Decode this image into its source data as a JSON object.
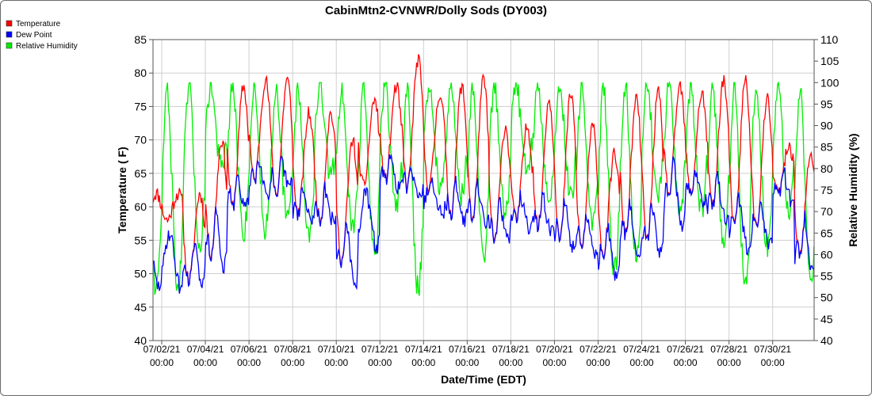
{
  "chart_data": {
    "type": "line",
    "title": "CabinMtn2-CVNWR/Dolly Sods (DY003)",
    "xlabel": "Date/Time (EDT)",
    "ylabel_left": "Temperature ( F)",
    "ylabel_right": "Relative Humidity (%)",
    "ylim_left": [
      40,
      85
    ],
    "ylim_right": [
      40,
      110
    ],
    "yticks_left": [
      "40",
      "45",
      "50",
      "55",
      "60",
      "65",
      "70",
      "75",
      "80",
      "85"
    ],
    "yticks_right": [
      "40",
      "45",
      "50",
      "55",
      "60",
      "65",
      "70",
      "75",
      "80",
      "85",
      "90",
      "95",
      "100",
      "105",
      "110"
    ],
    "xlim_days": [
      0.6,
      30.9
    ],
    "xticks": [
      {
        "day": 1,
        "date": "07/02/21",
        "time": "00:00"
      },
      {
        "day": 3,
        "date": "07/04/21",
        "time": "00:00"
      },
      {
        "day": 5,
        "date": "07/06/21",
        "time": "00:00"
      },
      {
        "day": 7,
        "date": "07/08/21",
        "time": "00:00"
      },
      {
        "day": 9,
        "date": "07/10/21",
        "time": "00:00"
      },
      {
        "day": 11,
        "date": "07/12/21",
        "time": "00:00"
      },
      {
        "day": 13,
        "date": "07/14/21",
        "time": "00:00"
      },
      {
        "day": 15,
        "date": "07/16/21",
        "time": "00:00"
      },
      {
        "day": 17,
        "date": "07/18/21",
        "time": "00:00"
      },
      {
        "day": 19,
        "date": "07/20/21",
        "time": "00:00"
      },
      {
        "day": 21,
        "date": "07/22/21",
        "time": "00:00"
      },
      {
        "day": 23,
        "date": "07/24/21",
        "time": "00:00"
      },
      {
        "day": 25,
        "date": "07/26/21",
        "time": "00:00"
      },
      {
        "day": 27,
        "date": "07/28/21",
        "time": "00:00"
      },
      {
        "day": 29,
        "date": "07/30/21",
        "time": "00:00"
      }
    ],
    "legend_position": "top-left",
    "legend": [
      {
        "name": "Temperature",
        "color": "#ff0000"
      },
      {
        "name": "Dew Point",
        "color": "#0000ff"
      },
      {
        "name": "Relative Humidity",
        "color": "#00ee00"
      }
    ],
    "grid": true,
    "x_units": "days since 07/01/21 00:00 EDT",
    "daily": {
      "day": [
        1,
        2,
        3,
        4,
        5,
        6,
        7,
        8,
        9,
        10,
        11,
        12,
        13,
        14,
        15,
        16,
        17,
        18,
        19,
        20,
        21,
        22,
        23,
        24,
        25,
        26,
        27,
        28,
        29,
        30
      ],
      "temp_min": [
        58,
        49,
        53,
        60,
        64,
        62,
        59,
        58,
        52,
        63,
        64,
        63,
        63,
        59,
        58,
        55,
        58,
        57,
        55,
        54,
        53,
        56,
        55,
        62,
        62,
        60,
        57,
        57,
        62,
        53
      ],
      "temp_max": [
        62,
        62,
        70,
        78,
        79,
        79,
        74,
        74,
        70,
        76,
        78,
        82,
        77,
        78,
        79,
        72,
        72,
        76,
        77,
        72,
        68,
        76,
        77,
        78,
        77,
        79,
        79,
        76,
        69,
        68
      ],
      "dew_min": [
        48,
        49,
        51,
        60,
        62,
        63,
        58,
        58,
        48,
        54,
        63,
        62,
        59,
        58,
        58,
        55,
        57,
        56,
        54,
        53,
        49,
        52,
        53,
        57,
        61,
        58,
        54,
        54,
        61,
        50
      ],
      "dew_max": [
        56,
        56,
        62,
        65,
        68,
        68,
        63,
        64,
        60,
        62,
        68,
        66,
        64,
        65,
        64,
        62,
        62,
        63,
        62,
        60,
        58,
        62,
        62,
        68,
        66,
        66,
        62,
        62,
        67,
        60
      ],
      "rh_min": [
        52,
        62,
        80,
        65,
        66,
        68,
        64,
        78,
        66,
        60,
        72,
        52,
        76,
        74,
        60,
        70,
        80,
        72,
        74,
        66,
        56,
        60,
        74,
        70,
        70,
        64,
        52,
        62,
        70,
        52
      ],
      "rh_max": [
        100,
        100,
        100,
        100,
        100,
        100,
        100,
        100,
        100,
        100,
        100,
        100,
        100,
        100,
        100,
        100,
        100,
        100,
        100,
        100,
        100,
        100,
        100,
        100,
        100,
        100,
        100,
        100,
        100,
        100
      ]
    }
  }
}
